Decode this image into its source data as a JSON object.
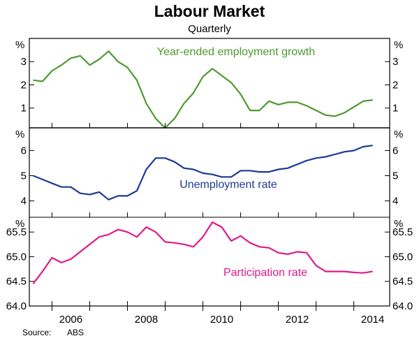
{
  "chart_data": {
    "title": "Labour Market",
    "subtitle": "Quarterly",
    "source_label": "Source:",
    "source_value": "ABS",
    "x_ticks": [
      "2006",
      "2008",
      "2010",
      "2012",
      "2014"
    ],
    "x_tick_years": [
      2006,
      2008,
      2010,
      2012,
      2014
    ],
    "x_range": [
      2005.4,
      2014.95
    ],
    "panels": [
      {
        "type": "line",
        "unit": "%",
        "ylim": [
          0.15,
          4.0
        ],
        "yticks": [
          1,
          2,
          3
        ],
        "ytick_labels": [
          "1",
          "2",
          "3"
        ],
        "series": [
          {
            "name": "Year-ended employment growth",
            "color": "#4e9a2f",
            "x": [
              2005.5,
              2005.75,
              2006.0,
              2006.25,
              2006.5,
              2006.75,
              2007.0,
              2007.25,
              2007.5,
              2007.75,
              2008.0,
              2008.25,
              2008.5,
              2008.75,
              2009.0,
              2009.25,
              2009.5,
              2009.75,
              2010.0,
              2010.25,
              2010.5,
              2010.75,
              2011.0,
              2011.25,
              2011.5,
              2011.75,
              2012.0,
              2012.25,
              2012.5,
              2012.75,
              2013.0,
              2013.25,
              2013.5,
              2013.75,
              2014.0,
              2014.25,
              2014.5
            ],
            "values": [
              2.2,
              2.15,
              2.6,
              2.85,
              3.15,
              3.25,
              2.85,
              3.1,
              3.45,
              3.0,
              2.75,
              2.2,
              1.2,
              0.55,
              0.15,
              0.55,
              1.2,
              1.65,
              2.35,
              2.7,
              2.4,
              2.1,
              1.6,
              0.9,
              0.9,
              1.3,
              1.15,
              1.25,
              1.25,
              1.1,
              0.9,
              0.7,
              0.65,
              0.8,
              1.05,
              1.3,
              1.35
            ]
          }
        ]
      },
      {
        "type": "line",
        "unit": "%",
        "ylim": [
          3.35,
          6.9
        ],
        "yticks": [
          4,
          5,
          6
        ],
        "ytick_labels": [
          "4",
          "5",
          "6"
        ],
        "series": [
          {
            "name": "Unemployment rate",
            "color": "#1f3a93",
            "x": [
              2005.5,
              2005.75,
              2006.0,
              2006.25,
              2006.5,
              2006.75,
              2007.0,
              2007.25,
              2007.5,
              2007.75,
              2008.0,
              2008.25,
              2008.5,
              2008.75,
              2009.0,
              2009.25,
              2009.5,
              2009.75,
              2010.0,
              2010.25,
              2010.5,
              2010.75,
              2011.0,
              2011.25,
              2011.5,
              2011.75,
              2012.0,
              2012.25,
              2012.5,
              2012.75,
              2013.0,
              2013.25,
              2013.5,
              2013.75,
              2014.0,
              2014.25,
              2014.5
            ],
            "values": [
              5.0,
              4.85,
              4.7,
              4.55,
              4.55,
              4.3,
              4.25,
              4.35,
              4.05,
              4.2,
              4.2,
              4.4,
              5.25,
              5.7,
              5.7,
              5.55,
              5.3,
              5.25,
              5.1,
              5.05,
              4.95,
              4.95,
              5.2,
              5.2,
              5.15,
              5.15,
              5.25,
              5.3,
              5.45,
              5.6,
              5.7,
              5.75,
              5.85,
              5.95,
              6.0,
              6.15,
              6.2
            ]
          }
        ]
      },
      {
        "type": "line",
        "unit": "%",
        "ylim": [
          64.0,
          65.8
        ],
        "yticks": [
          64.0,
          64.5,
          65.0,
          65.5
        ],
        "ytick_labels": [
          "64.0",
          "64.5",
          "65.0",
          "65.5"
        ],
        "series": [
          {
            "name": "Participation rate",
            "color": "#e0198b",
            "x": [
              2005.5,
              2005.75,
              2006.0,
              2006.25,
              2006.5,
              2006.75,
              2007.0,
              2007.25,
              2007.5,
              2007.75,
              2008.0,
              2008.25,
              2008.5,
              2008.75,
              2009.0,
              2009.25,
              2009.5,
              2009.75,
              2010.0,
              2010.25,
              2010.5,
              2010.75,
              2011.0,
              2011.25,
              2011.5,
              2011.75,
              2012.0,
              2012.25,
              2012.5,
              2012.75,
              2013.0,
              2013.25,
              2013.5,
              2013.75,
              2014.0,
              2014.25,
              2014.5
            ],
            "values": [
              64.45,
              64.7,
              64.98,
              64.88,
              64.95,
              65.1,
              65.25,
              65.4,
              65.45,
              65.55,
              65.5,
              65.4,
              65.6,
              65.5,
              65.3,
              65.28,
              65.25,
              65.2,
              65.4,
              65.7,
              65.6,
              65.32,
              65.42,
              65.28,
              65.2,
              65.18,
              65.08,
              65.05,
              65.1,
              65.08,
              64.82,
              64.7,
              64.7,
              64.7,
              64.68,
              64.67,
              64.7
            ]
          }
        ]
      }
    ]
  }
}
